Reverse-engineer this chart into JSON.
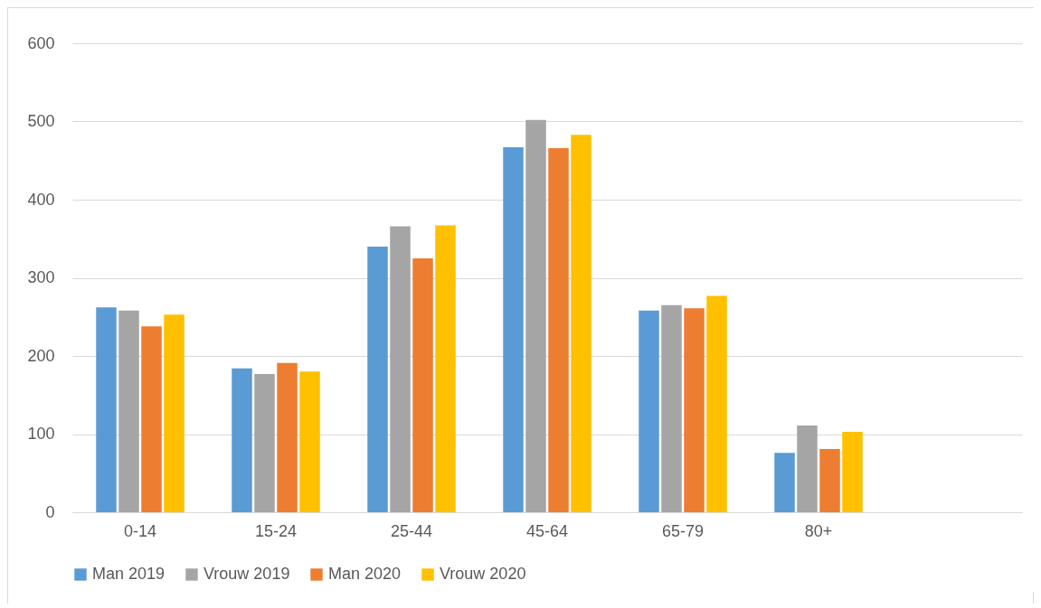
{
  "chart_data": {
    "type": "bar",
    "categories": [
      "0-14",
      "15-24",
      "25-44",
      "45-64",
      "65-79",
      "80+",
      null
    ],
    "series": [
      {
        "name": "Man 2019",
        "color": "#5b9bd5",
        "values": [
          262,
          184,
          340,
          467,
          258,
          76,
          null
        ]
      },
      {
        "name": "Vrouw 2019",
        "color": "#a5a5a5",
        "values": [
          258,
          177,
          366,
          502,
          265,
          111,
          null
        ]
      },
      {
        "name": "Man 2020",
        "color": "#ed7d31",
        "values": [
          238,
          191,
          325,
          466,
          261,
          81,
          null
        ]
      },
      {
        "name": "Vrouw 2020",
        "color": "#ffc000",
        "values": [
          253,
          180,
          367,
          483,
          277,
          103,
          null
        ]
      }
    ],
    "ylim": [
      0,
      600
    ],
    "yticks": [
      0,
      100,
      200,
      300,
      400,
      500,
      600
    ],
    "grid": "y",
    "legend": "bottom"
  }
}
